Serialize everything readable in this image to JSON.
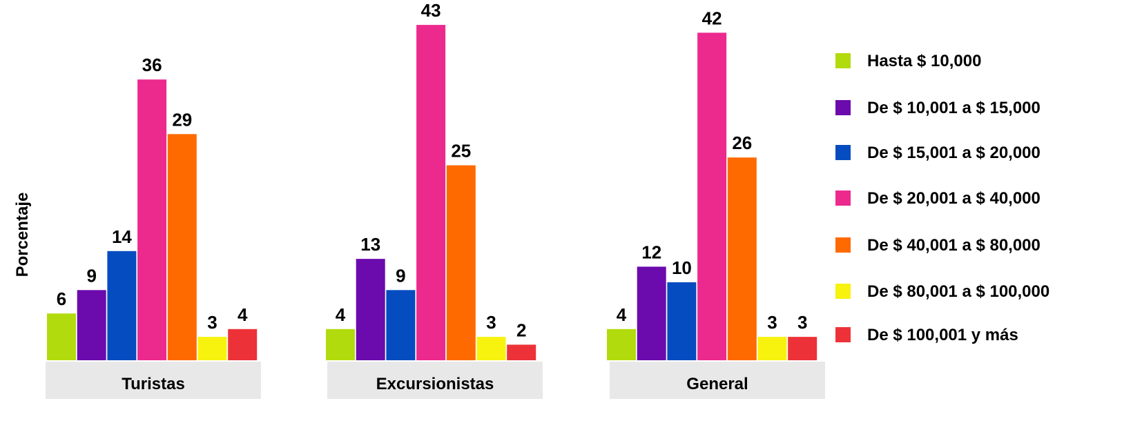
{
  "chart_data": {
    "type": "bar",
    "ylabel": "Porcentaje",
    "categories": [
      "Turistas",
      "Excursionistas",
      "General"
    ],
    "series": [
      {
        "name": "Hasta $ 10,000",
        "color": "#b2db0d",
        "values": [
          6,
          4,
          4
        ]
      },
      {
        "name": "De $ 10,001 a $ 15,000",
        "color": "#6b0aad",
        "values": [
          9,
          13,
          12
        ]
      },
      {
        "name": "De $ 15,001 a $ 20,000",
        "color": "#054cc0",
        "values": [
          14,
          9,
          10
        ]
      },
      {
        "name": "De $ 20,001 a $ 40,000",
        "color": "#ec2a8e",
        "values": [
          36,
          43,
          42
        ]
      },
      {
        "name": "De $ 40,001 a $ 80,000",
        "color": "#ff6a00",
        "values": [
          29,
          25,
          26
        ]
      },
      {
        "name": "De $ 80,001 a $ 100,000",
        "color": "#f8f20f",
        "values": [
          3,
          3,
          3
        ]
      },
      {
        "name": "De $ 100,001 y más",
        "color": "#ec3238",
        "values": [
          4,
          2,
          3
        ]
      }
    ],
    "legend_position": "right",
    "grid": false,
    "category_band_color": "#e8e8e8"
  }
}
